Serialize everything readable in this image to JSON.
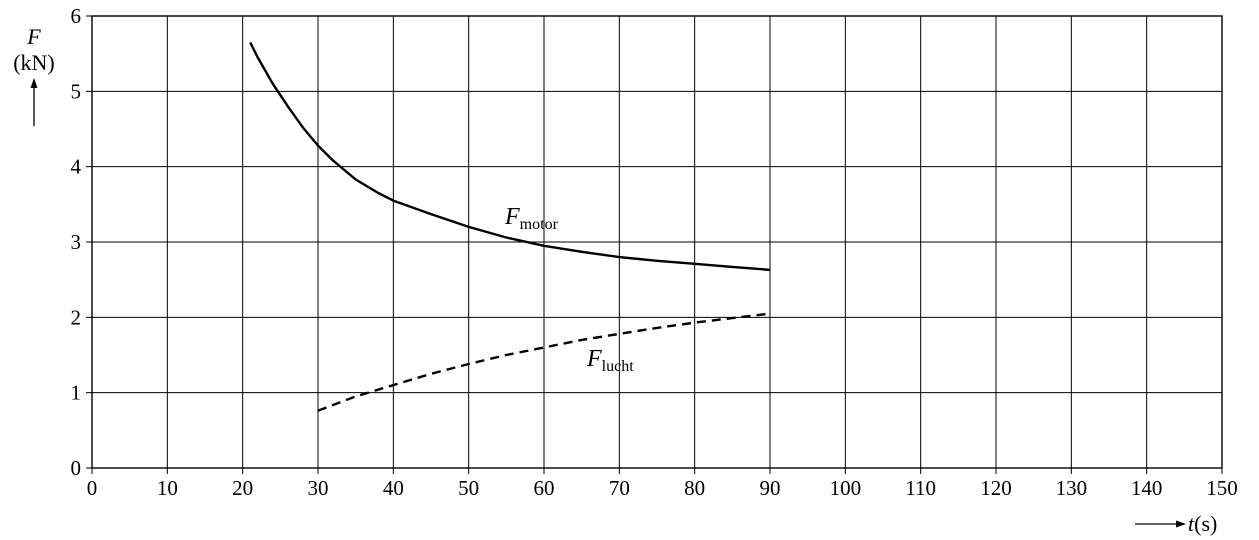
{
  "chart_data": {
    "type": "line",
    "title": "",
    "xlabel": {
      "symbol": "t",
      "unit": "(s)"
    },
    "ylabel": {
      "symbol": "F",
      "unit": "(kN)"
    },
    "xlim": [
      0,
      150
    ],
    "ylim": [
      0,
      6
    ],
    "xticks": [
      0,
      10,
      20,
      30,
      40,
      50,
      60,
      70,
      80,
      90,
      100,
      110,
      120,
      130,
      140,
      150
    ],
    "yticks": [
      0,
      1,
      2,
      3,
      4,
      5,
      6
    ],
    "grid": true,
    "series": [
      {
        "name": {
          "main": "F",
          "sub": "motor"
        },
        "line_style": "solid",
        "x": [
          21,
          22,
          24,
          26,
          28,
          30,
          32,
          35,
          38,
          40,
          45,
          50,
          55,
          60,
          65,
          70,
          75,
          80,
          85,
          90
        ],
        "y": [
          5.65,
          5.45,
          5.1,
          4.8,
          4.52,
          4.28,
          4.08,
          3.83,
          3.65,
          3.55,
          3.37,
          3.2,
          3.06,
          2.95,
          2.87,
          2.8,
          2.75,
          2.71,
          2.67,
          2.63
        ]
      },
      {
        "name": {
          "main": "F",
          "sub": "lucht"
        },
        "line_style": "dashed",
        "x": [
          30,
          35,
          40,
          45,
          50,
          55,
          60,
          65,
          70,
          75,
          80,
          85,
          90
        ],
        "y": [
          0.76,
          0.95,
          1.1,
          1.25,
          1.38,
          1.5,
          1.6,
          1.7,
          1.78,
          1.86,
          1.93,
          1.99,
          2.05
        ]
      }
    ]
  }
}
